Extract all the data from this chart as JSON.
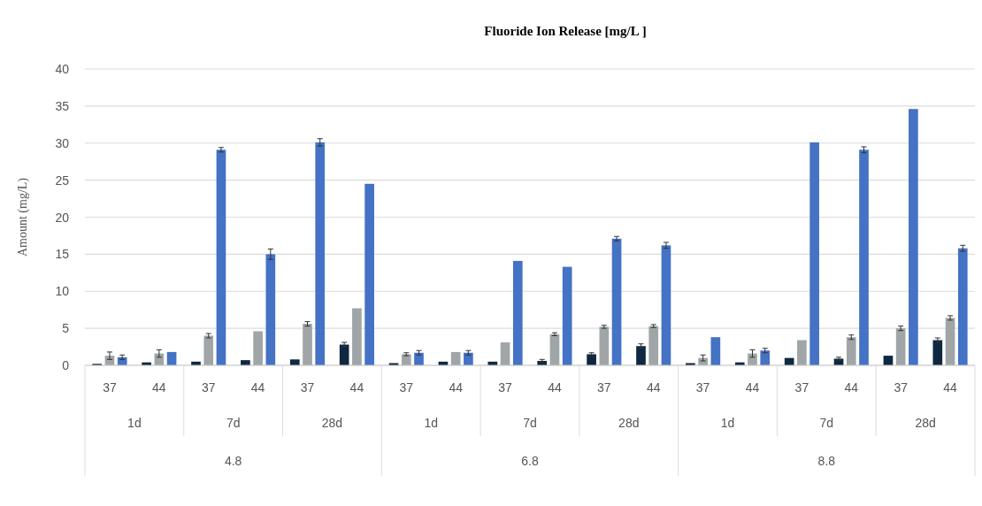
{
  "chart_data": {
    "type": "bar",
    "title": "Fluoride Ion Release [mg/L ]",
    "ylabel": "Amount (mg/L)",
    "categories": [
      "37",
      "44",
      "37",
      "44",
      "37",
      "44",
      "37",
      "44",
      "37",
      "44",
      "37",
      "44",
      "37",
      "44",
      "37",
      "44",
      "37",
      "44"
    ],
    "annotations": [
      "1d",
      "7d",
      "28d",
      "1d",
      "7d",
      "28d",
      "1d",
      "7d",
      "28d",
      "4.8",
      "6.8",
      "8.8"
    ],
    "series": [
      {
        "color": "#0e2841",
        "values": [
          0.2,
          0.4,
          0.5,
          0.7,
          0.8,
          2.8,
          0.3,
          0.5,
          0.5,
          0.6,
          1.5,
          2.6,
          0.3,
          0.4,
          1.0,
          0.9,
          1.3,
          3.4
        ],
        "errors": [
          null,
          null,
          null,
          null,
          null,
          0.3,
          null,
          null,
          null,
          0.2,
          0.2,
          0.3,
          null,
          null,
          null,
          0.2,
          null,
          0.3
        ]
      },
      {
        "color": "#a0a6a8",
        "values": [
          1.3,
          1.6,
          4.0,
          4.6,
          5.6,
          7.7,
          1.5,
          1.8,
          3.1,
          4.2,
          5.2,
          5.3,
          1.0,
          1.6,
          3.4,
          3.8,
          5.0,
          6.4
        ],
        "errors": [
          0.5,
          0.5,
          0.3,
          null,
          0.3,
          null,
          0.2,
          null,
          null,
          0.2,
          0.2,
          0.2,
          0.4,
          0.5,
          null,
          0.3,
          0.3,
          0.3
        ]
      },
      {
        "color": "#4472c4",
        "values": [
          1.1,
          1.8,
          29.1,
          15.0,
          30.1,
          24.5,
          1.7,
          1.7,
          14.1,
          13.3,
          17.1,
          16.2,
          3.8,
          2.0,
          30.1,
          29.1,
          34.6,
          15.8
        ],
        "errors": [
          0.3,
          null,
          0.3,
          0.7,
          0.5,
          null,
          0.3,
          0.3,
          null,
          null,
          0.3,
          0.4,
          null,
          0.3,
          null,
          0.4,
          null,
          0.4
        ]
      }
    ],
    "ylim": [
      0,
      40
    ],
    "yticks": [
      0,
      5,
      10,
      15,
      20,
      25,
      30,
      35,
      40
    ],
    "grid": "y"
  }
}
